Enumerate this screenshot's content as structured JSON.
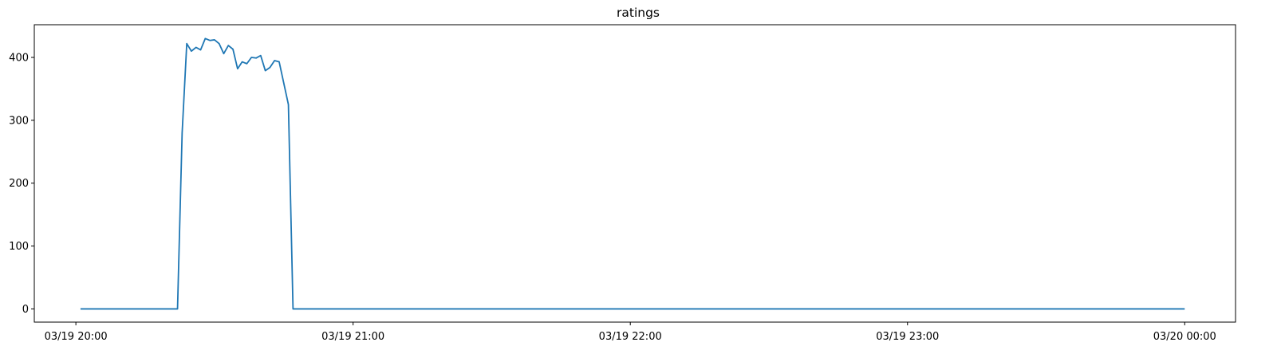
{
  "chart_data": {
    "type": "line",
    "title": "ratings",
    "xlabel": "",
    "ylabel": "",
    "grid": false,
    "x_ticks": [
      "03/19 20:00",
      "03/19 21:00",
      "03/19 22:00",
      "03/19 23:00",
      "03/20 00:00"
    ],
    "y_ticks": [
      0,
      100,
      200,
      300,
      400
    ],
    "xlim": [
      "03/19 19:51",
      "03/20 00:11"
    ],
    "ylim": [
      -21,
      452
    ],
    "line_color": "#1f77b4",
    "series": [
      {
        "points": [
          [
            "03/19 20:01",
            0
          ],
          [
            "03/19 20:22",
            0
          ],
          [
            "03/19 20:23",
            280
          ],
          [
            "03/19 20:24",
            422
          ],
          [
            "03/19 20:25",
            410
          ],
          [
            "03/19 20:26",
            416
          ],
          [
            "03/19 20:27",
            412
          ],
          [
            "03/19 20:28",
            430
          ],
          [
            "03/19 20:29",
            427
          ],
          [
            "03/19 20:30",
            428
          ],
          [
            "03/19 20:31",
            422
          ],
          [
            "03/19 20:32",
            406
          ],
          [
            "03/19 20:33",
            419
          ],
          [
            "03/19 20:34",
            413
          ],
          [
            "03/19 20:35",
            382
          ],
          [
            "03/19 20:36",
            393
          ],
          [
            "03/19 20:37",
            390
          ],
          [
            "03/19 20:38",
            400
          ],
          [
            "03/19 20:39",
            399
          ],
          [
            "03/19 20:40",
            403
          ],
          [
            "03/19 20:41",
            379
          ],
          [
            "03/19 20:42",
            384
          ],
          [
            "03/19 20:43",
            395
          ],
          [
            "03/19 20:44",
            393
          ],
          [
            "03/19 20:46",
            325
          ],
          [
            "03/19 20:47",
            0
          ],
          [
            "03/20 00:00",
            0
          ]
        ]
      }
    ]
  }
}
